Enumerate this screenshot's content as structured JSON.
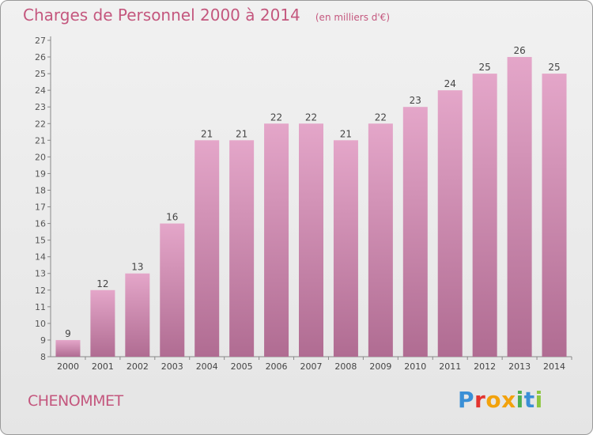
{
  "title": "Charges de Personnel 2000 à 2014",
  "unit_note": "(en milliers d'€)",
  "place": "CHENOMMET",
  "brand": {
    "letters": [
      {
        "ch": "P",
        "color": "#3a8fd6"
      },
      {
        "ch": "r",
        "color": "#e3342f"
      },
      {
        "ch": "o",
        "color": "#f2a20c"
      },
      {
        "ch": "x",
        "color": "#f2a20c"
      },
      {
        "ch": "i",
        "color": "#4caf50"
      },
      {
        "ch": "t",
        "color": "#3a8fd6"
      },
      {
        "ch": "i",
        "color": "#8dc63f"
      }
    ]
  },
  "colors": {
    "bar": "#d98ab5",
    "label": "#444444",
    "axis": "#888888"
  },
  "chart_data": {
    "type": "bar",
    "categories": [
      "2000",
      "2001",
      "2002",
      "2003",
      "2004",
      "2005",
      "2006",
      "2007",
      "2008",
      "2009",
      "2010",
      "2011",
      "2012",
      "2013",
      "2014"
    ],
    "values": [
      9,
      12,
      13,
      16,
      21,
      21,
      22,
      22,
      21,
      22,
      23,
      24,
      25,
      26,
      25
    ],
    "ylim": [
      8,
      27
    ],
    "yticks": [
      8,
      9,
      10,
      11,
      12,
      13,
      14,
      15,
      16,
      17,
      18,
      19,
      20,
      21,
      22,
      23,
      24,
      25,
      26,
      27
    ],
    "title": "Charges de Personnel 2000 à 2014",
    "xlabel": "",
    "ylabel": "",
    "grid": false
  }
}
